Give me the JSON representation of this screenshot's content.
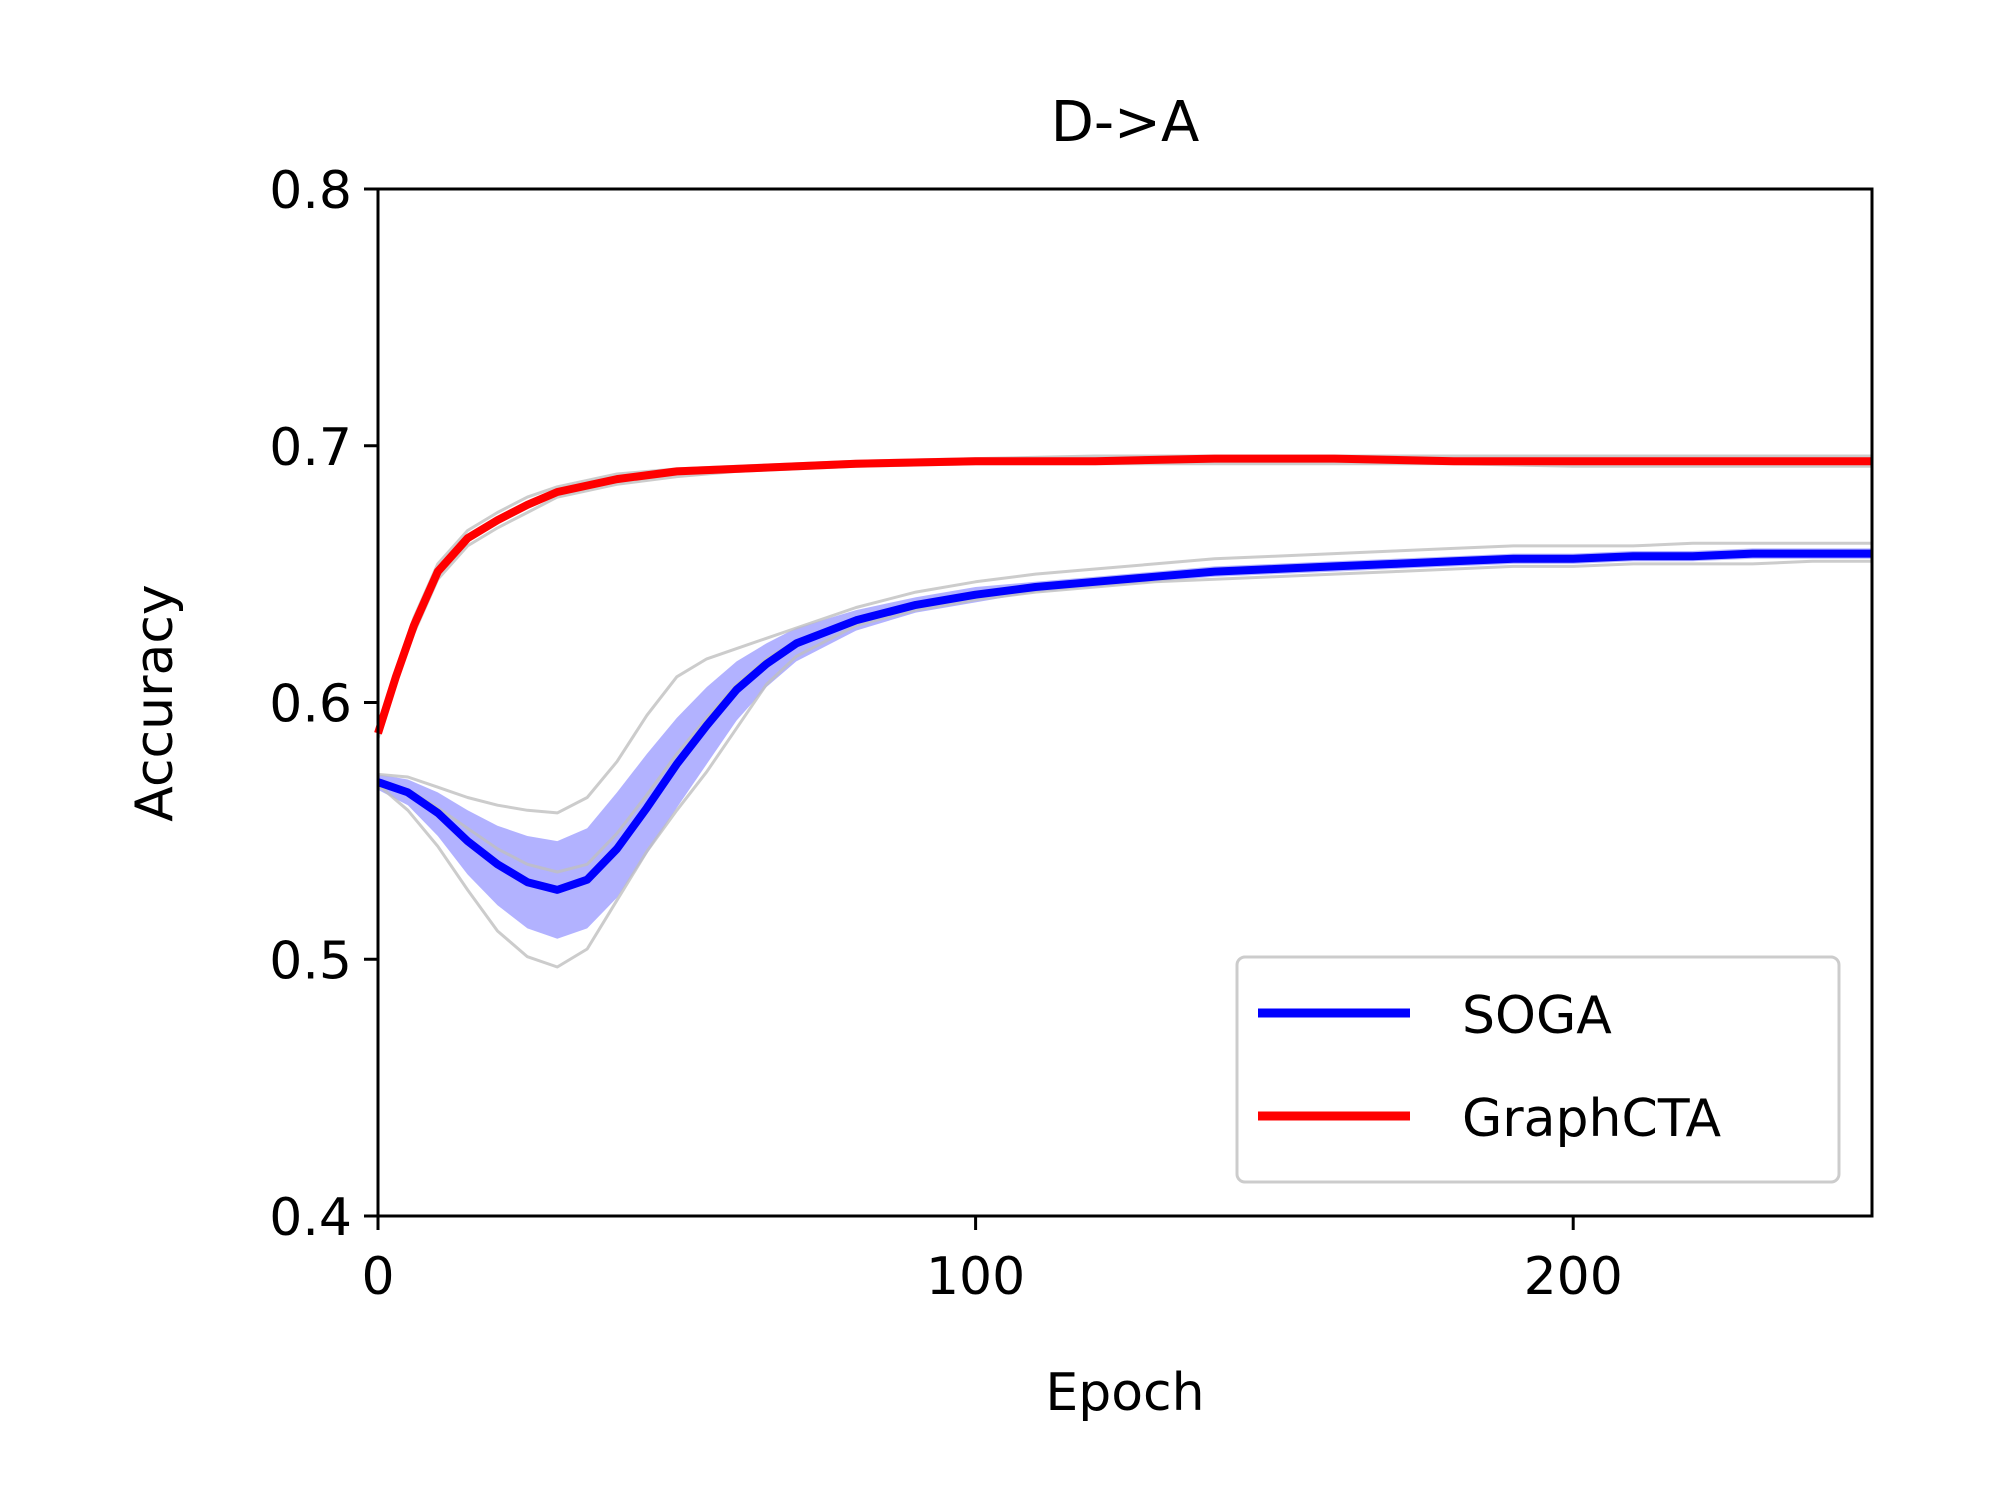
{
  "chart_data": {
    "type": "line",
    "title": "D->A",
    "xlabel": "Epoch",
    "ylabel": "Accuracy",
    "xlim": [
      0,
      250
    ],
    "ylim": [
      0.4,
      0.8
    ],
    "x_ticks": [
      0,
      100,
      200
    ],
    "x_tick_labels": [
      "0",
      "100",
      "200"
    ],
    "y_ticks": [
      0.4,
      0.5,
      0.6,
      0.7,
      0.8
    ],
    "y_tick_labels": [
      "0.4",
      "0.5",
      "0.6",
      "0.7",
      "0.8"
    ],
    "grid": false,
    "legend_position": "lower-right",
    "series": [
      {
        "name": "SOGA",
        "color": "#0000ff",
        "x": [
          0,
          5,
          10,
          15,
          20,
          25,
          30,
          35,
          40,
          45,
          50,
          55,
          60,
          65,
          70,
          80,
          90,
          100,
          110,
          120,
          130,
          140,
          150,
          160,
          170,
          180,
          190,
          200,
          210,
          220,
          230,
          240,
          250
        ],
        "y": [
          0.569,
          0.565,
          0.557,
          0.546,
          0.537,
          0.53,
          0.527,
          0.531,
          0.543,
          0.559,
          0.576,
          0.591,
          0.605,
          0.615,
          0.623,
          0.632,
          0.638,
          0.642,
          0.645,
          0.647,
          0.649,
          0.651,
          0.652,
          0.653,
          0.654,
          0.655,
          0.656,
          0.656,
          0.657,
          0.657,
          0.658,
          0.658,
          0.658
        ],
        "band_upper": [
          0.572,
          0.57,
          0.565,
          0.558,
          0.552,
          0.548,
          0.546,
          0.551,
          0.565,
          0.58,
          0.594,
          0.606,
          0.616,
          0.623,
          0.629,
          0.636,
          0.641,
          0.645,
          0.647,
          0.649,
          0.651,
          0.653,
          0.654,
          0.655,
          0.656,
          0.657,
          0.658,
          0.658,
          0.659,
          0.659,
          0.66,
          0.66,
          0.66
        ],
        "band_lower": [
          0.566,
          0.56,
          0.548,
          0.533,
          0.521,
          0.512,
          0.508,
          0.512,
          0.524,
          0.541,
          0.559,
          0.576,
          0.593,
          0.606,
          0.616,
          0.628,
          0.635,
          0.639,
          0.643,
          0.645,
          0.647,
          0.649,
          0.65,
          0.651,
          0.652,
          0.653,
          0.654,
          0.654,
          0.655,
          0.655,
          0.656,
          0.656,
          0.656
        ],
        "runs": [
          [
            0.572,
            0.571,
            0.567,
            0.563,
            0.56,
            0.558,
            0.557,
            0.563,
            0.577,
            0.595,
            0.61,
            0.617,
            0.621,
            0.625,
            0.629,
            0.637,
            0.643,
            0.647,
            0.65,
            0.652,
            0.654,
            0.656,
            0.657,
            0.658,
            0.659,
            0.66,
            0.661,
            0.661,
            0.661,
            0.662,
            0.662,
            0.662,
            0.662
          ],
          [
            0.567,
            0.566,
            0.559,
            0.551,
            0.543,
            0.537,
            0.534,
            0.537,
            0.549,
            0.564,
            0.58,
            0.594,
            0.607,
            0.617,
            0.624,
            0.633,
            0.639,
            0.643,
            0.646,
            0.648,
            0.65,
            0.652,
            0.653,
            0.654,
            0.655,
            0.656,
            0.657,
            0.657,
            0.658,
            0.658,
            0.659,
            0.659,
            0.659
          ],
          [
            0.568,
            0.558,
            0.544,
            0.527,
            0.511,
            0.501,
            0.497,
            0.504,
            0.523,
            0.542,
            0.558,
            0.573,
            0.59,
            0.607,
            0.618,
            0.63,
            0.636,
            0.64,
            0.643,
            0.645,
            0.647,
            0.648,
            0.649,
            0.65,
            0.651,
            0.652,
            0.653,
            0.653,
            0.654,
            0.654,
            0.654,
            0.655,
            0.655
          ]
        ]
      },
      {
        "name": "GraphCTA",
        "color": "#ff0000",
        "x": [
          0,
          3,
          6,
          10,
          15,
          20,
          25,
          30,
          40,
          50,
          60,
          80,
          100,
          120,
          140,
          160,
          180,
          200,
          220,
          250
        ],
        "y": [
          0.588,
          0.61,
          0.63,
          0.651,
          0.664,
          0.671,
          0.677,
          0.682,
          0.687,
          0.69,
          0.691,
          0.693,
          0.694,
          0.694,
          0.695,
          0.695,
          0.694,
          0.694,
          0.694,
          0.694
        ],
        "runs": [
          [
            0.59,
            0.612,
            0.633,
            0.654,
            0.667,
            0.674,
            0.68,
            0.684,
            0.689,
            0.691,
            0.692,
            0.694,
            0.695,
            0.696,
            0.696,
            0.696,
            0.696,
            0.696,
            0.696,
            0.696
          ],
          [
            0.586,
            0.608,
            0.627,
            0.648,
            0.661,
            0.668,
            0.674,
            0.68,
            0.685,
            0.688,
            0.69,
            0.692,
            0.693,
            0.693,
            0.693,
            0.693,
            0.693,
            0.692,
            0.692,
            0.692
          ]
        ]
      }
    ]
  }
}
